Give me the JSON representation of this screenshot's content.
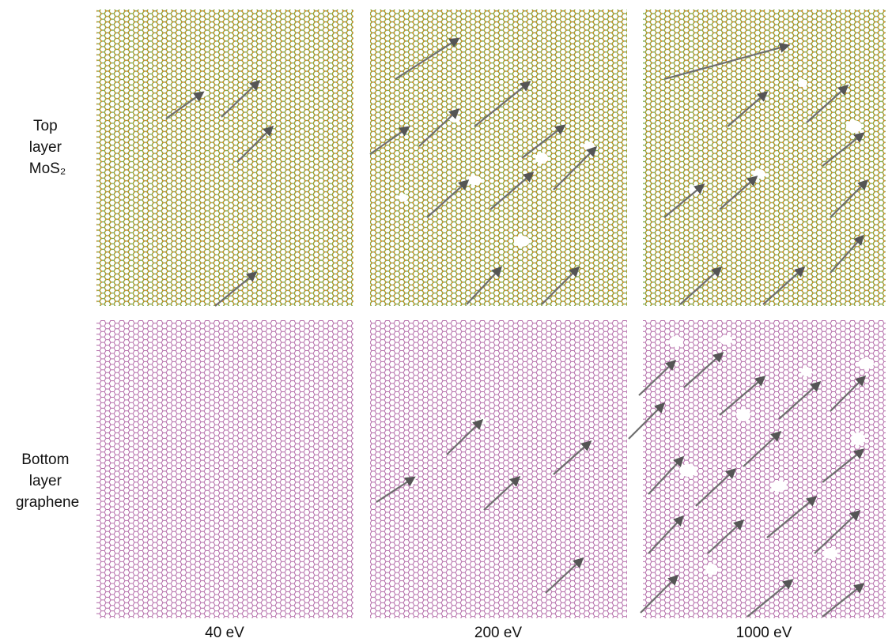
{
  "row_labels": [
    {
      "lines": [
        "Top",
        "layer",
        "MoS₂"
      ]
    },
    {
      "lines": [
        "Bottom",
        "layer",
        "graphene"
      ]
    }
  ],
  "column_labels": [
    "40 eV",
    "200 eV",
    "1000 eV"
  ]
}
